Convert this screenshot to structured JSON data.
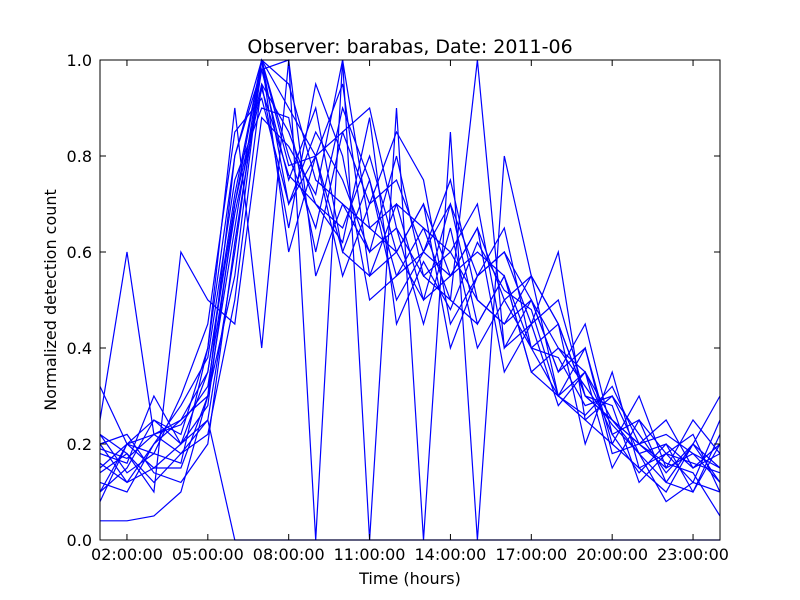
{
  "chart_data": {
    "type": "line",
    "title": "Observer: barabas, Date: 2011-06",
    "xlabel": "Time (hours)",
    "ylabel": "Normalized detection count",
    "x_unit": "hour of day",
    "xlim": [
      1,
      24
    ],
    "ylim": [
      0,
      1.0
    ],
    "x_ticks": [
      {
        "value": 2,
        "label": "02:00:00"
      },
      {
        "value": 5,
        "label": "05:00:00"
      },
      {
        "value": 8,
        "label": "08:00:00"
      },
      {
        "value": 11,
        "label": "11:00:00"
      },
      {
        "value": 14,
        "label": "14:00:00"
      },
      {
        "value": 17,
        "label": "17:00:00"
      },
      {
        "value": 20,
        "label": "20:00:00"
      },
      {
        "value": 23,
        "label": "23:00:00"
      }
    ],
    "y_ticks": [
      {
        "value": 0.0,
        "label": "0.0"
      },
      {
        "value": 0.2,
        "label": "0.2"
      },
      {
        "value": 0.4,
        "label": "0.4"
      },
      {
        "value": 0.6,
        "label": "0.6"
      },
      {
        "value": 0.8,
        "label": "0.8"
      },
      {
        "value": 1.0,
        "label": "1.0"
      }
    ],
    "grid": false,
    "line_color": "#0000ff",
    "x": [
      1,
      2,
      3,
      4,
      5,
      6,
      7,
      8,
      9,
      10,
      11,
      12,
      13,
      14,
      15,
      16,
      17,
      18,
      19,
      20,
      21,
      22,
      23,
      24
    ],
    "series": [
      {
        "values": [
          0.15,
          0.2,
          0.22,
          0.25,
          0.3,
          0.55,
          1.0,
          0.9,
          0.8,
          0.85,
          0.7,
          0.75,
          0.6,
          0.55,
          0.65,
          0.5,
          0.4,
          0.45,
          0.3,
          0.25,
          0.2,
          0.15,
          0.18,
          0.15
        ]
      },
      {
        "values": [
          0.2,
          0.12,
          0.15,
          0.2,
          0.35,
          0.7,
          0.95,
          0.85,
          0.7,
          0.65,
          0.8,
          0.6,
          0.5,
          0.7,
          0.55,
          0.6,
          0.5,
          0.35,
          0.4,
          0.2,
          0.15,
          0.1,
          0.2,
          0.12
        ]
      },
      {
        "values": [
          0.1,
          0.15,
          0.25,
          0.22,
          0.4,
          0.8,
          0.98,
          0.75,
          0.9,
          0.6,
          0.55,
          0.7,
          0.65,
          0.5,
          0.45,
          0.55,
          0.4,
          0.3,
          0.25,
          0.3,
          0.18,
          0.2,
          0.15,
          0.18
        ]
      },
      {
        "values": [
          0.22,
          0.18,
          0.12,
          0.18,
          0.25,
          0.6,
          1.0,
          0.8,
          0.65,
          0.9,
          0.75,
          0.55,
          0.6,
          0.75,
          0.5,
          0.45,
          0.5,
          0.4,
          0.35,
          0.22,
          0.25,
          0.12,
          0.1,
          0.2
        ]
      },
      {
        "values": [
          0.08,
          0.2,
          0.18,
          0.3,
          0.45,
          0.85,
          0.92,
          0.7,
          0.85,
          0.75,
          0.6,
          0.8,
          0.55,
          0.6,
          0.7,
          0.4,
          0.45,
          0.5,
          0.3,
          0.28,
          0.12,
          0.18,
          0.22,
          0.1
        ]
      },
      {
        "values": [
          0.32,
          0.2,
          0.15,
          0.15,
          0.3,
          0.65,
          1.0,
          0.95,
          0.75,
          0.7,
          0.65,
          0.6,
          0.7,
          0.55,
          0.6,
          0.55,
          0.35,
          0.3,
          0.4,
          0.18,
          0.2,
          0.25,
          0.15,
          0.2
        ]
      },
      {
        "values": [
          0.12,
          0.1,
          0.2,
          0.28,
          0.38,
          0.75,
          0.9,
          0.88,
          0.6,
          0.85,
          0.9,
          0.65,
          0.45,
          0.65,
          0.4,
          0.5,
          0.55,
          0.45,
          0.2,
          0.35,
          0.15,
          0.18,
          0.12,
          0.25
        ]
      },
      {
        "values": [
          0.18,
          0.16,
          0.3,
          0.2,
          0.28,
          0.7,
          1.0,
          0.78,
          0.8,
          0.55,
          0.7,
          0.85,
          0.75,
          0.45,
          0.55,
          0.65,
          0.4,
          0.38,
          0.28,
          0.3,
          0.22,
          0.14,
          0.2,
          0.15
        ]
      },
      {
        "values": [
          0.25,
          0.6,
          0.22,
          0.18,
          0.22,
          0.5,
          0.95,
          0.65,
          0.95,
          0.8,
          0.5,
          0.55,
          0.65,
          0.6,
          0.5,
          0.45,
          0.55,
          0.3,
          0.35,
          0.25,
          0.2,
          0.22,
          0.18,
          0.12
        ]
      },
      {
        "values": [
          0.14,
          0.18,
          0.1,
          0.6,
          0.5,
          0.45,
          0.88,
          0.82,
          0.72,
          1.0,
          0.65,
          0.7,
          0.5,
          0.55,
          0.65,
          0.35,
          0.45,
          0.6,
          0.25,
          0.2,
          0.3,
          0.15,
          0.25,
          0.18
        ]
      },
      {
        "values": [
          0.04,
          0.04,
          0.05,
          0.1,
          0.3,
          0.8,
          1.0,
          0.7,
          0.8,
          0.6,
          0.75,
          0.5,
          0.6,
          0.7,
          0.45,
          0.55,
          0.35,
          0.4,
          0.32,
          0.24,
          0.18,
          0.08,
          0.12,
          0.1
        ]
      },
      {
        "values": [
          0.2,
          0.22,
          0.14,
          0.12,
          0.2,
          0.62,
          0.98,
          1.0,
          0.55,
          0.7,
          0.6,
          0.65,
          0.55,
          0.5,
          1.0,
          0.4,
          0.5,
          0.35,
          0.45,
          0.22,
          0.14,
          0.2,
          0.1,
          0.22
        ]
      },
      {
        "values": [
          0.16,
          0.12,
          0.2,
          0.25,
          0.35,
          0.72,
          1.0,
          0.6,
          0.8,
          0.95,
          0.55,
          0.6,
          0.7,
          0.4,
          0.55,
          0.6,
          0.45,
          0.28,
          0.35,
          0.15,
          0.25,
          0.18,
          0.16,
          0.14
        ]
      },
      {
        "values": [
          0.1,
          0.2,
          0.25,
          0.2,
          0.25,
          0.0,
          0.0,
          0.0,
          0.0,
          0.0,
          0.0,
          0.0,
          0.0,
          0.0,
          0.0,
          0.0,
          0.0,
          0.0,
          0.0,
          0.0,
          0.0,
          0.0,
          0.0,
          0.0
        ]
      },
      {
        "values": [
          0.22,
          0.14,
          0.18,
          0.16,
          0.4,
          0.9,
          0.4,
          1.0,
          0.0,
          1.0,
          0.0,
          0.9,
          0.0,
          0.85,
          0.0,
          0.8,
          0.55,
          0.45,
          0.3,
          0.25,
          0.18,
          0.12,
          0.2,
          0.3
        ]
      },
      {
        "values": [
          0.19,
          0.17,
          0.22,
          0.24,
          0.32,
          0.68,
          0.94,
          0.76,
          0.7,
          0.62,
          0.88,
          0.45,
          0.58,
          0.48,
          0.62,
          0.52,
          0.48,
          0.3,
          0.26,
          0.32,
          0.2,
          0.16,
          0.14,
          0.05
        ]
      }
    ]
  }
}
